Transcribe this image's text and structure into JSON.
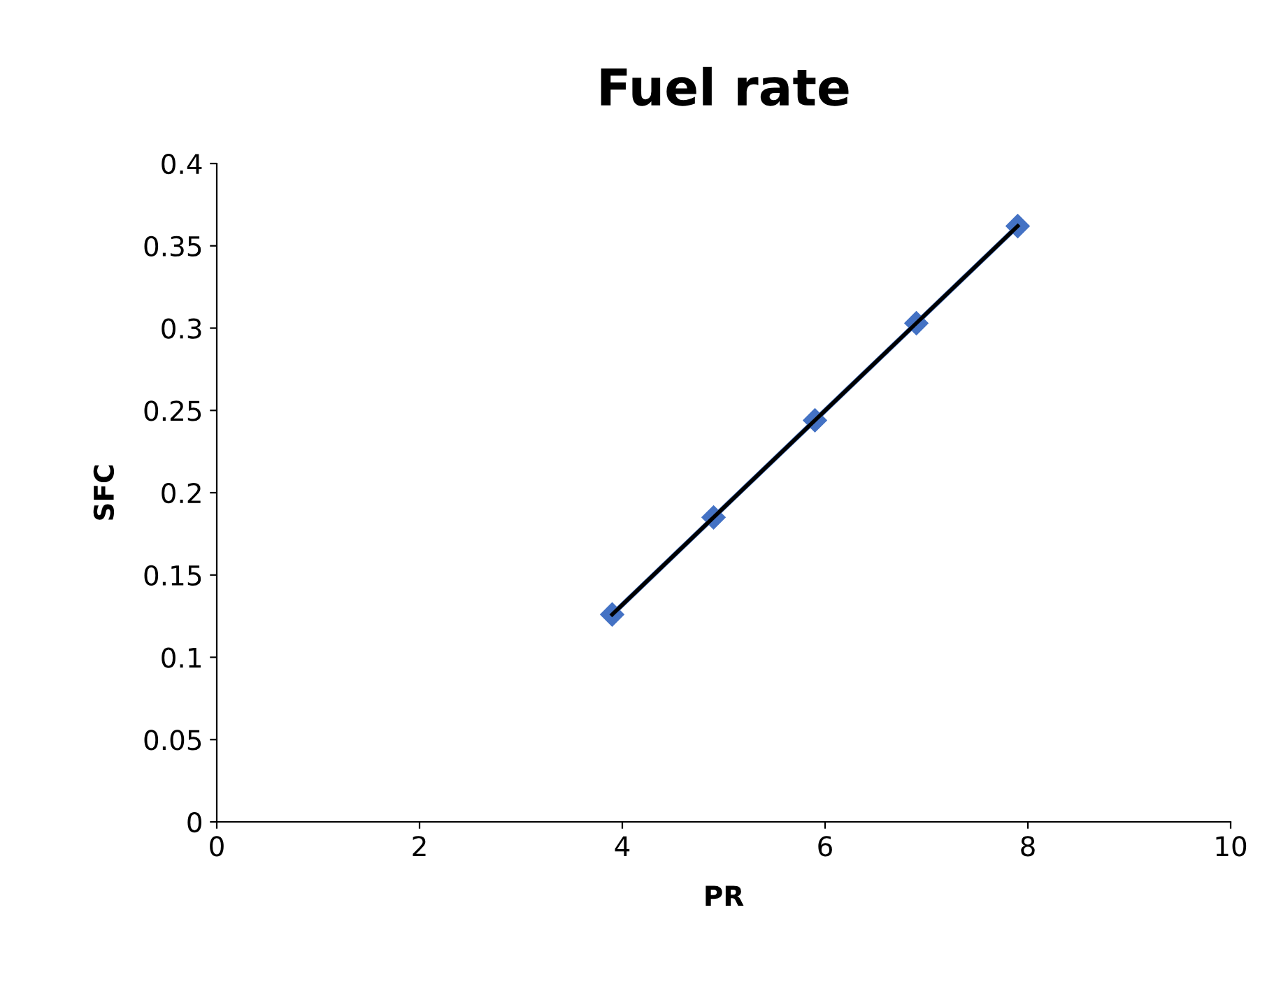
{
  "chart_data": {
    "type": "line",
    "title": "Fuel rate",
    "xlabel": "PR",
    "ylabel": "SFC",
    "x": [
      3.9,
      4.9,
      5.9,
      6.9,
      7.9
    ],
    "series": [
      {
        "color": "#4472c4",
        "values": [
          0.126,
          0.185,
          0.244,
          0.303,
          0.362
        ],
        "marker": "diamond"
      },
      {
        "type": "line",
        "color": "#000000",
        "x": [
          3.9,
          7.9
        ],
        "values": [
          0.126,
          0.362
        ],
        "marker": "none"
      }
    ],
    "xlim": [
      0,
      10
    ],
    "xticks": [
      0,
      2,
      4,
      6,
      8,
      10
    ],
    "ylim": [
      0,
      0.4
    ],
    "yticks": [
      0,
      0.05,
      0.1,
      0.15,
      0.2,
      0.25,
      0.3,
      0.35,
      0.4
    ],
    "grid": false,
    "legend": false,
    "line_style": "solid"
  }
}
